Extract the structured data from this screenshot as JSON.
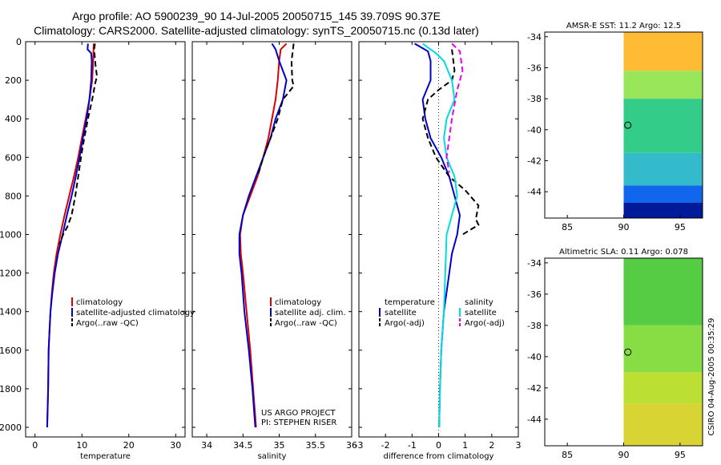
{
  "figure": {
    "title_line1": "Argo profile: AO 5900239_90 14-Jul-2005 20050715_145 39.709S 90.37E",
    "title_line2": "Climatology: CARS2000. Satellite-adjusted climatology: synTS_20050715.nc (0.13d later)",
    "credit": "CSIRO 04-Aug-2005 00:35:29",
    "project_line1": "US ARGO PROJECT",
    "project_line2": "PI: STEPHEN RISER"
  },
  "colors": {
    "climatology": "#dd0000",
    "satellite": "#0000cc",
    "argo": "#000000",
    "salinity_sat": "#00dddd",
    "salinity_argo": "#ee00ee"
  },
  "chart_data": [
    {
      "id": "temperature",
      "type": "line",
      "xlabel": "temperature",
      "ylabel": "",
      "xlim": [
        -2,
        32
      ],
      "ylim": [
        2050,
        0
      ],
      "xticks": [
        0,
        10,
        20,
        30
      ],
      "yticks": [
        0,
        200,
        400,
        600,
        800,
        1000,
        1200,
        1400,
        1600,
        1800,
        2000
      ],
      "series": [
        {
          "name": "climatology",
          "style": "solid",
          "color": "#dd0000",
          "points": [
            [
              12.5,
              10
            ],
            [
              12.4,
              100
            ],
            [
              12.2,
              200
            ],
            [
              11.6,
              300
            ],
            [
              10.8,
              400
            ],
            [
              10,
              500
            ],
            [
              9.2,
              600
            ],
            [
              8.3,
              700
            ],
            [
              7.3,
              800
            ],
            [
              6.3,
              900
            ],
            [
              5.4,
              1000
            ],
            [
              4.6,
              1100
            ],
            [
              4,
              1200
            ],
            [
              3.6,
              1300
            ],
            [
              3.3,
              1400
            ],
            [
              3.1,
              1500
            ],
            [
              2.9,
              1600
            ],
            [
              2.8,
              1800
            ],
            [
              2.6,
              2000
            ]
          ]
        },
        {
          "name": "satellite-adjusted climatology",
          "style": "solid",
          "color": "#0000cc",
          "points": [
            [
              11.3,
              10
            ],
            [
              11.2,
              40
            ],
            [
              12,
              60
            ],
            [
              12.1,
              100
            ],
            [
              12,
              200
            ],
            [
              11.6,
              300
            ],
            [
              11,
              400
            ],
            [
              10.2,
              500
            ],
            [
              9.5,
              600
            ],
            [
              8.7,
              700
            ],
            [
              7.8,
              800
            ],
            [
              6.8,
              900
            ],
            [
              5.9,
              1000
            ],
            [
              4.9,
              1100
            ],
            [
              4.2,
              1200
            ],
            [
              3.7,
              1300
            ],
            [
              3.3,
              1400
            ],
            [
              3.1,
              1500
            ],
            [
              2.9,
              1600
            ],
            [
              2.8,
              1800
            ],
            [
              2.6,
              2000
            ]
          ]
        },
        {
          "name": "Argo(..raw -QC)",
          "style": "dashed",
          "color": "#000000",
          "points": [
            [
              12.8,
              10
            ],
            [
              12.6,
              40
            ],
            [
              12.9,
              120
            ],
            [
              13.2,
              180
            ],
            [
              12.8,
              220
            ],
            [
              12.2,
              300
            ],
            [
              11.3,
              400
            ],
            [
              10.5,
              500
            ],
            [
              9.8,
              600
            ],
            [
              9.2,
              700
            ],
            [
              8.6,
              800
            ],
            [
              7.8,
              900
            ],
            [
              6.9,
              960
            ],
            [
              6,
              1000
            ],
            [
              5.2,
              1050
            ]
          ]
        }
      ],
      "legend": {
        "position": "lower-right",
        "entries": [
          "climatology",
          "satellite-adjusted climatology",
          "Argo(..raw -QC)"
        ]
      }
    },
    {
      "id": "salinity",
      "type": "line",
      "xlabel": "salinity",
      "ylabel": "",
      "xlim": [
        33.8,
        36.0
      ],
      "ylim": [
        2050,
        0
      ],
      "xticks": [
        34,
        34.5,
        35,
        35.5,
        36
      ],
      "xticklabels": [
        "34",
        "34.5",
        "35",
        "35.5",
        "36"
      ],
      "series": [
        {
          "name": "climatology",
          "style": "solid",
          "color": "#dd0000",
          "points": [
            [
              35.1,
              10
            ],
            [
              35.02,
              40
            ],
            [
              35,
              100
            ],
            [
              34.98,
              200
            ],
            [
              34.95,
              300
            ],
            [
              34.9,
              400
            ],
            [
              34.85,
              500
            ],
            [
              34.78,
              600
            ],
            [
              34.7,
              700
            ],
            [
              34.6,
              800
            ],
            [
              34.5,
              900
            ],
            [
              34.46,
              1000
            ],
            [
              34.47,
              1100
            ],
            [
              34.5,
              1200
            ],
            [
              34.55,
              1400
            ],
            [
              34.6,
              1600
            ],
            [
              34.64,
              1800
            ],
            [
              34.68,
              2000
            ]
          ]
        },
        {
          "name": "satellite adj. clim.",
          "style": "solid",
          "color": "#0000cc",
          "points": [
            [
              34.9,
              10
            ],
            [
              34.95,
              40
            ],
            [
              35,
              100
            ],
            [
              35.1,
              200
            ],
            [
              35.05,
              300
            ],
            [
              34.95,
              400
            ],
            [
              34.88,
              500
            ],
            [
              34.78,
              600
            ],
            [
              34.68,
              700
            ],
            [
              34.58,
              800
            ],
            [
              34.5,
              900
            ],
            [
              34.45,
              1000
            ],
            [
              34.45,
              1100
            ],
            [
              34.48,
              1200
            ],
            [
              34.52,
              1400
            ],
            [
              34.58,
              1600
            ],
            [
              34.63,
              1800
            ],
            [
              34.67,
              2000
            ]
          ]
        },
        {
          "name": "Argo(..raw -QC)",
          "style": "dashed",
          "color": "#000000",
          "points": [
            [
              35.2,
              10
            ],
            [
              35.17,
              100
            ],
            [
              35.18,
              200
            ],
            [
              35.2,
              230
            ],
            [
              35.05,
              300
            ],
            [
              34.98,
              400
            ],
            [
              34.88,
              500
            ],
            [
              34.78,
              600
            ],
            [
              34.7,
              700
            ]
          ]
        }
      ],
      "legend": {
        "position": "lower-right",
        "entries": [
          "climatology",
          "satellite adj. clim.",
          "Argo(..raw -QC)"
        ]
      }
    },
    {
      "id": "difference",
      "type": "line",
      "xlabel": "difference from climatology",
      "ylabel": "",
      "xlim": [
        -3,
        3
      ],
      "ylim": [
        2050,
        0
      ],
      "xticks": [
        -3,
        -2,
        -1,
        0,
        1,
        2,
        3
      ],
      "series": [
        {
          "name": "temperature satellite",
          "style": "solid",
          "color": "#0000cc",
          "points": [
            [
              -0.9,
              10
            ],
            [
              -0.4,
              50
            ],
            [
              -0.3,
              100
            ],
            [
              -0.3,
              200
            ],
            [
              -0.6,
              300
            ],
            [
              -0.5,
              400
            ],
            [
              -0.3,
              500
            ],
            [
              0.1,
              600
            ],
            [
              0.4,
              700
            ],
            [
              0.6,
              800
            ],
            [
              0.8,
              900
            ],
            [
              0.7,
              1000
            ],
            [
              0.5,
              1100
            ],
            [
              0.4,
              1200
            ],
            [
              0.2,
              1400
            ],
            [
              0.1,
              1600
            ],
            [
              0.05,
              1800
            ],
            [
              0.02,
              2000
            ]
          ]
        },
        {
          "name": "temperature Argo(-adj)",
          "style": "dashed",
          "color": "#000000",
          "points": [
            [
              0.5,
              40
            ],
            [
              0.6,
              150
            ],
            [
              0.5,
              200
            ],
            [
              0,
              250
            ],
            [
              -0.4,
              300
            ],
            [
              -0.6,
              400
            ],
            [
              -0.4,
              500
            ],
            [
              -0.1,
              600
            ],
            [
              0.4,
              700
            ],
            [
              1,
              770
            ],
            [
              1.5,
              850
            ],
            [
              1.4,
              920
            ],
            [
              1.5,
              950
            ],
            [
              0.9,
              1000
            ]
          ]
        },
        {
          "name": "salinity satellite",
          "style": "solid",
          "color": "#00dddd",
          "points": [
            [
              -0.6,
              10
            ],
            [
              -0.1,
              60
            ],
            [
              0.2,
              100
            ],
            [
              0.5,
              200
            ],
            [
              0.6,
              300
            ],
            [
              0.3,
              400
            ],
            [
              0.2,
              500
            ],
            [
              0.3,
              600
            ],
            [
              0.6,
              700
            ],
            [
              0.7,
              800
            ],
            [
              0.5,
              900
            ],
            [
              0.3,
              1000
            ],
            [
              0.25,
              1200
            ],
            [
              0.2,
              1400
            ],
            [
              0.1,
              1600
            ],
            [
              0.05,
              1800
            ],
            [
              0.02,
              2000
            ]
          ]
        },
        {
          "name": "salinity Argo(-adj)",
          "style": "dashed",
          "color": "#ee00ee",
          "points": [
            [
              0.5,
              10
            ],
            [
              0.8,
              50
            ],
            [
              0.9,
              150
            ],
            [
              0.7,
              250
            ],
            [
              0.5,
              400
            ],
            [
              0.3,
              600
            ],
            [
              0.4,
              680
            ]
          ]
        }
      ],
      "legend": {
        "position": "lower-left",
        "temperature_header": "temperature",
        "salinity_header": "salinity",
        "entries_temperature": [
          "satellite",
          "Argo(-adj)"
        ],
        "entries_salinity": [
          "satellite",
          "Argo(-adj)"
        ]
      }
    },
    {
      "id": "sst_map",
      "type": "heatmap",
      "title": "AMSR-E SST: 11.2  Argo: 12.5",
      "xlim": [
        83,
        97
      ],
      "ylim": [
        -45.7,
        -33.7
      ],
      "xticks": [
        85,
        90,
        95
      ],
      "yticks": [
        -34,
        -36,
        -38,
        -40,
        -42,
        -44
      ],
      "data_xlim": [
        90,
        97
      ],
      "marker": {
        "lon": 90.37,
        "lat": -39.709
      },
      "bands": [
        {
          "lat_top": -33.7,
          "lat_bottom": -36.2,
          "color": "#ffbb33"
        },
        {
          "lat_top": -36.2,
          "lat_bottom": -38.0,
          "color": "#99e65a"
        },
        {
          "lat_top": -38.0,
          "lat_bottom": -41.5,
          "color": "#33cc88"
        },
        {
          "lat_top": -41.5,
          "lat_bottom": -43.6,
          "color": "#33bbcc"
        },
        {
          "lat_top": -43.6,
          "lat_bottom": -44.7,
          "color": "#1166ee"
        },
        {
          "lat_top": -44.7,
          "lat_bottom": -45.7,
          "color": "#001a99"
        }
      ]
    },
    {
      "id": "sla_map",
      "type": "heatmap",
      "title": "Altimetric SLA: 0.11  Argo: 0.078",
      "xlim": [
        83,
        97
      ],
      "ylim": [
        -45.7,
        -33.7
      ],
      "xticks": [
        85,
        90,
        95
      ],
      "yticks": [
        -34,
        -36,
        -38,
        -40,
        -42,
        -44
      ],
      "data_xlim": [
        90,
        97
      ],
      "marker": {
        "lon": 90.37,
        "lat": -39.709
      },
      "bands": [
        {
          "lat_top": -33.7,
          "lat_bottom": -38.0,
          "color": "#55cc44"
        },
        {
          "lat_top": -38.0,
          "lat_bottom": -41.0,
          "color": "#88dd44"
        },
        {
          "lat_top": -41.0,
          "lat_bottom": -43.0,
          "color": "#bbe033"
        },
        {
          "lat_top": -43.0,
          "lat_bottom": -45.7,
          "color": "#d8d433"
        }
      ]
    }
  ]
}
